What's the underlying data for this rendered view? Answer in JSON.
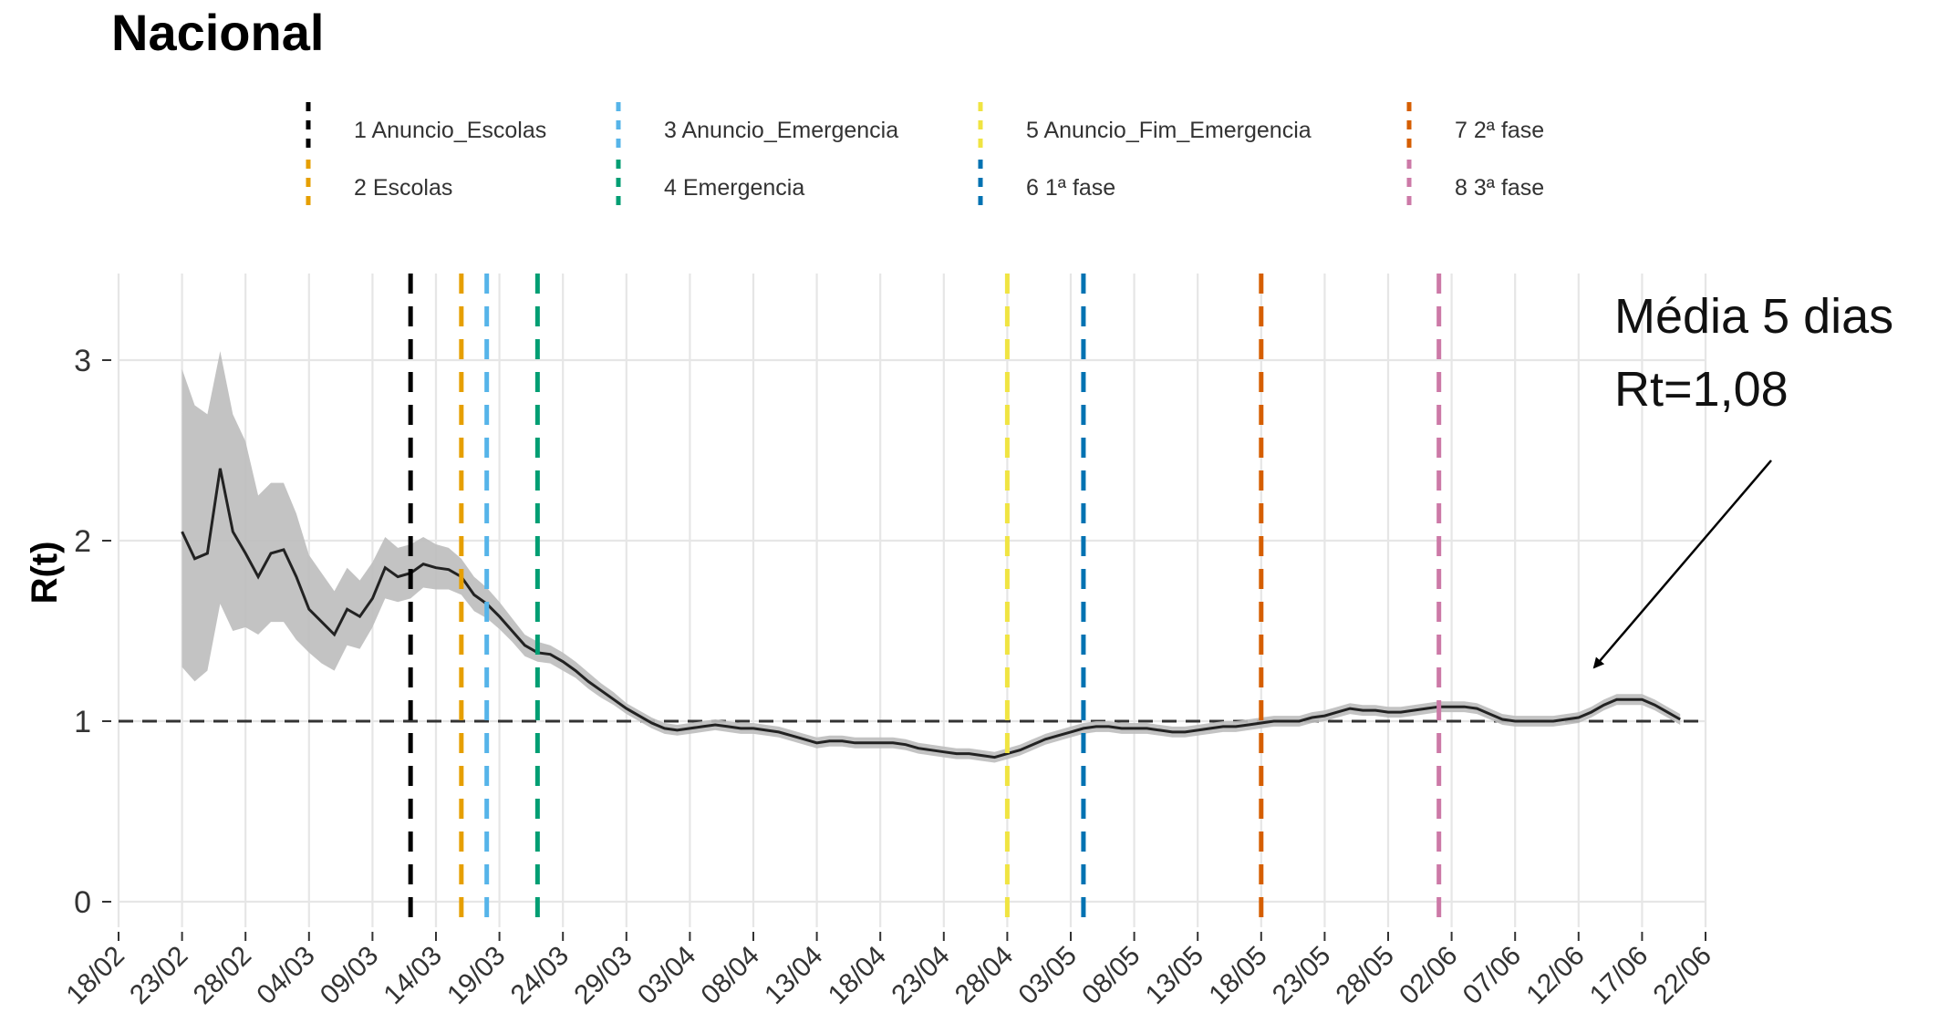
{
  "chart_data": {
    "type": "line",
    "title": "Nacional",
    "ylabel": "R(t)",
    "xlabel": "",
    "ylim": [
      0,
      3.5
    ],
    "yticks": [
      0,
      1,
      2,
      3
    ],
    "x_start": "2020-02-18",
    "x_end": "2020-06-22",
    "xticks": [
      "18/02",
      "23/02",
      "28/02",
      "04/03",
      "09/03",
      "14/03",
      "19/03",
      "24/03",
      "29/03",
      "03/04",
      "08/04",
      "13/04",
      "18/04",
      "23/04",
      "28/04",
      "03/05",
      "08/05",
      "13/05",
      "18/05",
      "23/05",
      "28/05",
      "02/06",
      "07/06",
      "12/06",
      "17/06",
      "22/06"
    ],
    "grid": true,
    "legend_position": "top",
    "reference_line": {
      "y": 1,
      "style": "dashed",
      "color": "#333333"
    },
    "series": [
      {
        "color": "#222222",
        "band_color": "#bdbdbd",
        "points": [
          {
            "x": "2020-02-23",
            "y": 2.05,
            "lo": 1.3,
            "hi": 2.95
          },
          {
            "x": "2020-02-24",
            "y": 1.9,
            "lo": 1.22,
            "hi": 2.75
          },
          {
            "x": "2020-02-25",
            "y": 1.93,
            "lo": 1.28,
            "hi": 2.7
          },
          {
            "x": "2020-02-26",
            "y": 2.4,
            "lo": 1.65,
            "hi": 3.05
          },
          {
            "x": "2020-02-27",
            "y": 2.05,
            "lo": 1.5,
            "hi": 2.7
          },
          {
            "x": "2020-02-28",
            "y": 1.93,
            "lo": 1.52,
            "hi": 2.55
          },
          {
            "x": "2020-02-29",
            "y": 1.8,
            "lo": 1.48,
            "hi": 2.25
          },
          {
            "x": "2020-03-01",
            "y": 1.93,
            "lo": 1.55,
            "hi": 2.32
          },
          {
            "x": "2020-03-02",
            "y": 1.95,
            "lo": 1.55,
            "hi": 2.32
          },
          {
            "x": "2020-03-03",
            "y": 1.8,
            "lo": 1.45,
            "hi": 2.15
          },
          {
            "x": "2020-03-04",
            "y": 1.62,
            "lo": 1.38,
            "hi": 1.92
          },
          {
            "x": "2020-03-05",
            "y": 1.55,
            "lo": 1.32,
            "hi": 1.82
          },
          {
            "x": "2020-03-06",
            "y": 1.48,
            "lo": 1.28,
            "hi": 1.72
          },
          {
            "x": "2020-03-07",
            "y": 1.62,
            "lo": 1.42,
            "hi": 1.85
          },
          {
            "x": "2020-03-08",
            "y": 1.58,
            "lo": 1.4,
            "hi": 1.78
          },
          {
            "x": "2020-03-09",
            "y": 1.68,
            "lo": 1.52,
            "hi": 1.88
          },
          {
            "x": "2020-03-10",
            "y": 1.85,
            "lo": 1.68,
            "hi": 2.02
          },
          {
            "x": "2020-03-11",
            "y": 1.8,
            "lo": 1.66,
            "hi": 1.96
          },
          {
            "x": "2020-03-12",
            "y": 1.82,
            "lo": 1.68,
            "hi": 1.98
          },
          {
            "x": "2020-03-13",
            "y": 1.87,
            "lo": 1.74,
            "hi": 2.02
          },
          {
            "x": "2020-03-14",
            "y": 1.85,
            "lo": 1.73,
            "hi": 1.98
          },
          {
            "x": "2020-03-15",
            "y": 1.84,
            "lo": 1.73,
            "hi": 1.96
          },
          {
            "x": "2020-03-16",
            "y": 1.8,
            "lo": 1.7,
            "hi": 1.9
          },
          {
            "x": "2020-03-17",
            "y": 1.7,
            "lo": 1.61,
            "hi": 1.8
          },
          {
            "x": "2020-03-18",
            "y": 1.65,
            "lo": 1.57,
            "hi": 1.74
          },
          {
            "x": "2020-03-19",
            "y": 1.58,
            "lo": 1.51,
            "hi": 1.66
          },
          {
            "x": "2020-03-20",
            "y": 1.5,
            "lo": 1.44,
            "hi": 1.57
          },
          {
            "x": "2020-03-21",
            "y": 1.42,
            "lo": 1.36,
            "hi": 1.48
          },
          {
            "x": "2020-03-22",
            "y": 1.38,
            "lo": 1.33,
            "hi": 1.44
          },
          {
            "x": "2020-03-23",
            "y": 1.37,
            "lo": 1.32,
            "hi": 1.42
          },
          {
            "x": "2020-03-24",
            "y": 1.33,
            "lo": 1.28,
            "hi": 1.38
          },
          {
            "x": "2020-03-25",
            "y": 1.28,
            "lo": 1.24,
            "hi": 1.33
          },
          {
            "x": "2020-03-26",
            "y": 1.22,
            "lo": 1.18,
            "hi": 1.27
          },
          {
            "x": "2020-03-27",
            "y": 1.17,
            "lo": 1.13,
            "hi": 1.21
          },
          {
            "x": "2020-03-28",
            "y": 1.12,
            "lo": 1.09,
            "hi": 1.16
          },
          {
            "x": "2020-03-29",
            "y": 1.07,
            "lo": 1.04,
            "hi": 1.1
          },
          {
            "x": "2020-03-30",
            "y": 1.03,
            "lo": 1.0,
            "hi": 1.06
          },
          {
            "x": "2020-03-31",
            "y": 0.99,
            "lo": 0.96,
            "hi": 1.02
          },
          {
            "x": "2020-04-01",
            "y": 0.96,
            "lo": 0.93,
            "hi": 0.99
          },
          {
            "x": "2020-04-02",
            "y": 0.95,
            "lo": 0.92,
            "hi": 0.98
          },
          {
            "x": "2020-04-03",
            "y": 0.96,
            "lo": 0.93,
            "hi": 0.99
          },
          {
            "x": "2020-04-04",
            "y": 0.97,
            "lo": 0.94,
            "hi": 1.0
          },
          {
            "x": "2020-04-05",
            "y": 0.98,
            "lo": 0.95,
            "hi": 1.01
          },
          {
            "x": "2020-04-06",
            "y": 0.97,
            "lo": 0.94,
            "hi": 1.0
          },
          {
            "x": "2020-04-07",
            "y": 0.96,
            "lo": 0.93,
            "hi": 0.99
          },
          {
            "x": "2020-04-08",
            "y": 0.96,
            "lo": 0.93,
            "hi": 0.99
          },
          {
            "x": "2020-04-09",
            "y": 0.95,
            "lo": 0.92,
            "hi": 0.98
          },
          {
            "x": "2020-04-10",
            "y": 0.94,
            "lo": 0.91,
            "hi": 0.97
          },
          {
            "x": "2020-04-11",
            "y": 0.92,
            "lo": 0.89,
            "hi": 0.95
          },
          {
            "x": "2020-04-12",
            "y": 0.9,
            "lo": 0.87,
            "hi": 0.93
          },
          {
            "x": "2020-04-13",
            "y": 0.88,
            "lo": 0.85,
            "hi": 0.91
          },
          {
            "x": "2020-04-14",
            "y": 0.89,
            "lo": 0.86,
            "hi": 0.92
          },
          {
            "x": "2020-04-15",
            "y": 0.89,
            "lo": 0.86,
            "hi": 0.92
          },
          {
            "x": "2020-04-16",
            "y": 0.88,
            "lo": 0.85,
            "hi": 0.91
          },
          {
            "x": "2020-04-17",
            "y": 0.88,
            "lo": 0.85,
            "hi": 0.91
          },
          {
            "x": "2020-04-18",
            "y": 0.88,
            "lo": 0.85,
            "hi": 0.91
          },
          {
            "x": "2020-04-19",
            "y": 0.88,
            "lo": 0.85,
            "hi": 0.91
          },
          {
            "x": "2020-04-20",
            "y": 0.87,
            "lo": 0.84,
            "hi": 0.9
          },
          {
            "x": "2020-04-21",
            "y": 0.85,
            "lo": 0.82,
            "hi": 0.88
          },
          {
            "x": "2020-04-22",
            "y": 0.84,
            "lo": 0.81,
            "hi": 0.87
          },
          {
            "x": "2020-04-23",
            "y": 0.83,
            "lo": 0.8,
            "hi": 0.86
          },
          {
            "x": "2020-04-24",
            "y": 0.82,
            "lo": 0.79,
            "hi": 0.85
          },
          {
            "x": "2020-04-25",
            "y": 0.82,
            "lo": 0.79,
            "hi": 0.85
          },
          {
            "x": "2020-04-26",
            "y": 0.81,
            "lo": 0.78,
            "hi": 0.84
          },
          {
            "x": "2020-04-27",
            "y": 0.8,
            "lo": 0.77,
            "hi": 0.83
          },
          {
            "x": "2020-04-28",
            "y": 0.82,
            "lo": 0.79,
            "hi": 0.85
          },
          {
            "x": "2020-04-29",
            "y": 0.84,
            "lo": 0.81,
            "hi": 0.87
          },
          {
            "x": "2020-04-30",
            "y": 0.87,
            "lo": 0.84,
            "hi": 0.9
          },
          {
            "x": "2020-05-01",
            "y": 0.9,
            "lo": 0.87,
            "hi": 0.93
          },
          {
            "x": "2020-05-02",
            "y": 0.92,
            "lo": 0.89,
            "hi": 0.95
          },
          {
            "x": "2020-05-03",
            "y": 0.94,
            "lo": 0.91,
            "hi": 0.97
          },
          {
            "x": "2020-05-04",
            "y": 0.96,
            "lo": 0.93,
            "hi": 0.99
          },
          {
            "x": "2020-05-05",
            "y": 0.97,
            "lo": 0.94,
            "hi": 1.0
          },
          {
            "x": "2020-05-06",
            "y": 0.97,
            "lo": 0.94,
            "hi": 1.0
          },
          {
            "x": "2020-05-07",
            "y": 0.96,
            "lo": 0.93,
            "hi": 0.99
          },
          {
            "x": "2020-05-08",
            "y": 0.96,
            "lo": 0.93,
            "hi": 0.99
          },
          {
            "x": "2020-05-09",
            "y": 0.96,
            "lo": 0.93,
            "hi": 0.99
          },
          {
            "x": "2020-05-10",
            "y": 0.95,
            "lo": 0.92,
            "hi": 0.98
          },
          {
            "x": "2020-05-11",
            "y": 0.94,
            "lo": 0.91,
            "hi": 0.97
          },
          {
            "x": "2020-05-12",
            "y": 0.94,
            "lo": 0.91,
            "hi": 0.97
          },
          {
            "x": "2020-05-13",
            "y": 0.95,
            "lo": 0.92,
            "hi": 0.98
          },
          {
            "x": "2020-05-14",
            "y": 0.96,
            "lo": 0.93,
            "hi": 0.99
          },
          {
            "x": "2020-05-15",
            "y": 0.97,
            "lo": 0.94,
            "hi": 1.0
          },
          {
            "x": "2020-05-16",
            "y": 0.97,
            "lo": 0.94,
            "hi": 1.0
          },
          {
            "x": "2020-05-17",
            "y": 0.98,
            "lo": 0.95,
            "hi": 1.01
          },
          {
            "x": "2020-05-18",
            "y": 0.99,
            "lo": 0.96,
            "hi": 1.02
          },
          {
            "x": "2020-05-19",
            "y": 1.0,
            "lo": 0.97,
            "hi": 1.03
          },
          {
            "x": "2020-05-20",
            "y": 1.0,
            "lo": 0.97,
            "hi": 1.03
          },
          {
            "x": "2020-05-21",
            "y": 1.0,
            "lo": 0.97,
            "hi": 1.03
          },
          {
            "x": "2020-05-22",
            "y": 1.02,
            "lo": 0.99,
            "hi": 1.05
          },
          {
            "x": "2020-05-23",
            "y": 1.03,
            "lo": 1.0,
            "hi": 1.06
          },
          {
            "x": "2020-05-24",
            "y": 1.05,
            "lo": 1.02,
            "hi": 1.08
          },
          {
            "x": "2020-05-25",
            "y": 1.07,
            "lo": 1.04,
            "hi": 1.1
          },
          {
            "x": "2020-05-26",
            "y": 1.06,
            "lo": 1.03,
            "hi": 1.09
          },
          {
            "x": "2020-05-27",
            "y": 1.06,
            "lo": 1.03,
            "hi": 1.09
          },
          {
            "x": "2020-05-28",
            "y": 1.05,
            "lo": 1.02,
            "hi": 1.08
          },
          {
            "x": "2020-05-29",
            "y": 1.05,
            "lo": 1.02,
            "hi": 1.08
          },
          {
            "x": "2020-05-30",
            "y": 1.06,
            "lo": 1.03,
            "hi": 1.09
          },
          {
            "x": "2020-05-31",
            "y": 1.07,
            "lo": 1.04,
            "hi": 1.1
          },
          {
            "x": "2020-06-01",
            "y": 1.08,
            "lo": 1.05,
            "hi": 1.11
          },
          {
            "x": "2020-06-02",
            "y": 1.08,
            "lo": 1.05,
            "hi": 1.11
          },
          {
            "x": "2020-06-03",
            "y": 1.08,
            "lo": 1.05,
            "hi": 1.11
          },
          {
            "x": "2020-06-04",
            "y": 1.07,
            "lo": 1.04,
            "hi": 1.1
          },
          {
            "x": "2020-06-05",
            "y": 1.04,
            "lo": 1.01,
            "hi": 1.07
          },
          {
            "x": "2020-06-06",
            "y": 1.01,
            "lo": 0.98,
            "hi": 1.04
          },
          {
            "x": "2020-06-07",
            "y": 1.0,
            "lo": 0.97,
            "hi": 1.03
          },
          {
            "x": "2020-06-08",
            "y": 1.0,
            "lo": 0.97,
            "hi": 1.03
          },
          {
            "x": "2020-06-09",
            "y": 1.0,
            "lo": 0.97,
            "hi": 1.03
          },
          {
            "x": "2020-06-10",
            "y": 1.0,
            "lo": 0.97,
            "hi": 1.03
          },
          {
            "x": "2020-06-11",
            "y": 1.01,
            "lo": 0.98,
            "hi": 1.04
          },
          {
            "x": "2020-06-12",
            "y": 1.02,
            "lo": 0.99,
            "hi": 1.05
          },
          {
            "x": "2020-06-13",
            "y": 1.05,
            "lo": 1.02,
            "hi": 1.08
          },
          {
            "x": "2020-06-14",
            "y": 1.09,
            "lo": 1.06,
            "hi": 1.12
          },
          {
            "x": "2020-06-15",
            "y": 1.12,
            "lo": 1.09,
            "hi": 1.15
          },
          {
            "x": "2020-06-16",
            "y": 1.12,
            "lo": 1.09,
            "hi": 1.15
          },
          {
            "x": "2020-06-17",
            "y": 1.12,
            "lo": 1.09,
            "hi": 1.15
          },
          {
            "x": "2020-06-18",
            "y": 1.09,
            "lo": 1.06,
            "hi": 1.12
          },
          {
            "x": "2020-06-19",
            "y": 1.05,
            "lo": 1.02,
            "hi": 1.08
          },
          {
            "x": "2020-06-20",
            "y": 1.01,
            "lo": 0.98,
            "hi": 1.04
          }
        ]
      }
    ],
    "events": [
      {
        "label": "1 Anuncio_Escolas",
        "date": "2020-03-12",
        "color": "#000000"
      },
      {
        "label": "2 Escolas",
        "date": "2020-03-16",
        "color": "#E69F00"
      },
      {
        "label": "3 Anuncio_Emergencia",
        "date": "2020-03-18",
        "color": "#56B4E9"
      },
      {
        "label": "4 Emergencia",
        "date": "2020-03-22",
        "color": "#009E73"
      },
      {
        "label": "5 Anuncio_Fim_Emergencia",
        "date": "2020-04-28",
        "color": "#F0E442"
      },
      {
        "label": "6 1ª fase",
        "date": "2020-05-04",
        "color": "#0072B2"
      },
      {
        "label": "7 2ª fase",
        "date": "2020-05-18",
        "color": "#D55E00"
      },
      {
        "label": "8 3ª fase",
        "date": "2020-06-01",
        "color": "#CC79A7"
      }
    ],
    "annotation": {
      "lines": [
        "Média 5 dias",
        "Rt=1,08"
      ],
      "points_to": {
        "x": "2020-06-17",
        "y": 1.2
      }
    }
  }
}
